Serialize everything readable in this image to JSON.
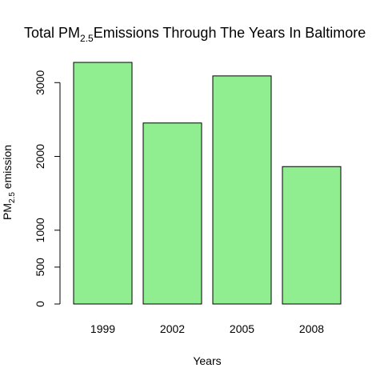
{
  "chart_data": {
    "type": "bar",
    "title": {
      "prefix": "Total PM",
      "subscript": "2.5",
      "suffix": "Emissions Through The Years In Baltimore"
    },
    "xlabel": "Years",
    "ylabel": {
      "prefix": "PM",
      "subscript": "2.5",
      "suffix": " emission"
    },
    "categories": [
      "1999",
      "2002",
      "2005",
      "2008"
    ],
    "values": [
      3274,
      2453,
      3091,
      1862
    ],
    "ylim": [
      0,
      3274
    ],
    "yticks": [
      0,
      500,
      1000,
      2000,
      3000
    ],
    "bar_color": "#90EE90",
    "bar_border": "#000000",
    "grid": false,
    "legend": "none"
  }
}
